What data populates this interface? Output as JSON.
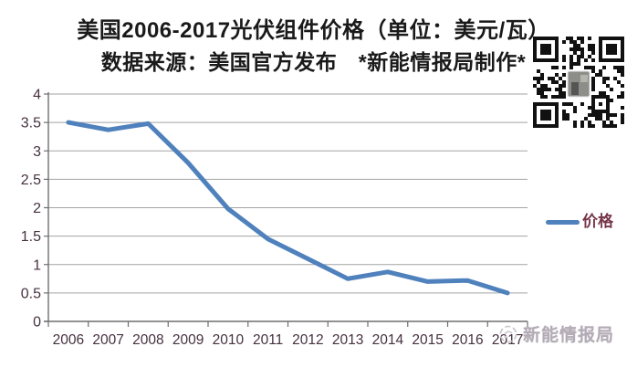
{
  "title": {
    "line1": "美国2006-2017光伏组件价格（单位：美元/瓦）",
    "line2": "数据来源：美国官方发布　*新能情报局制作*"
  },
  "chart_data": {
    "type": "line",
    "title": "美国2006-2017光伏组件价格（单位：美元/瓦）",
    "subtitle": "数据来源：美国官方发布　*新能情报局制作*",
    "categories": [
      "2006",
      "2007",
      "2008",
      "2009",
      "2010",
      "2011",
      "2012",
      "2013",
      "2014",
      "2015",
      "2016",
      "2017"
    ],
    "series": [
      {
        "name": "价格",
        "values": [
          3.5,
          3.37,
          3.48,
          2.79,
          1.98,
          1.45,
          1.1,
          0.75,
          0.87,
          0.7,
          0.72,
          0.5
        ]
      }
    ],
    "xlabel": "",
    "ylabel": "",
    "ylim": [
      0,
      4
    ],
    "ytick_step": 0.5,
    "yticks": [
      0,
      0.5,
      1,
      1.5,
      2,
      2.5,
      3,
      3.5,
      4
    ],
    "grid": true,
    "legend_position": "right"
  },
  "legend": {
    "label": "价格"
  },
  "watermark": {
    "text": "新能情报局"
  },
  "icons": {
    "qr": "qr-code-icon",
    "watermark_logo": "watermark-logo-icon"
  },
  "colors": {
    "line": "#4f81bd",
    "grid": "#a3a3a3",
    "axis": "#6e6e6e",
    "tick_label": "#46313f",
    "legend_text": "#77354a",
    "title_text": "#1a1a1a",
    "watermark_text": "#b3acb6",
    "background": "#ffffff"
  }
}
